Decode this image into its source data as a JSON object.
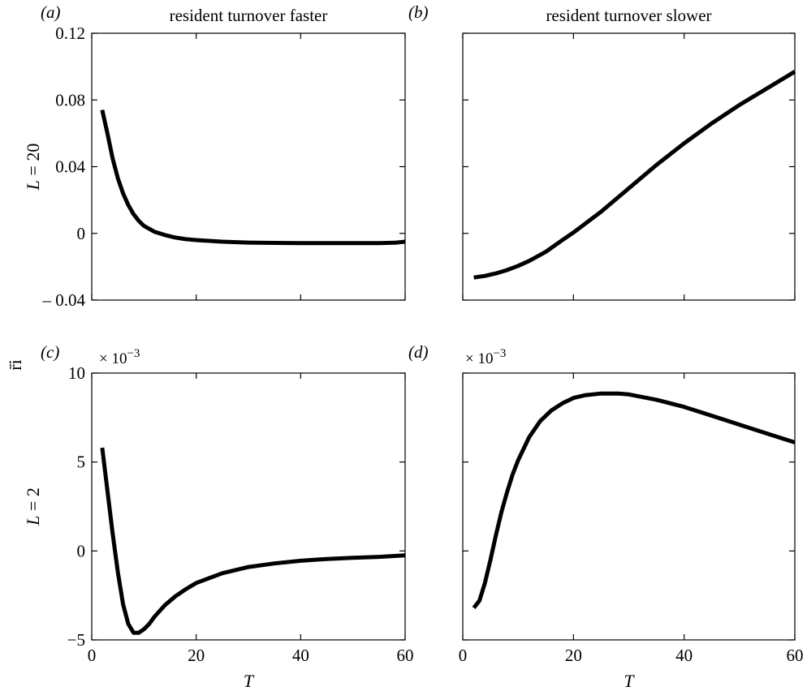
{
  "figure": {
    "shared_ylabel": "r̄i",
    "shared_xlabel": "T"
  },
  "chart_data": [
    {
      "id": "a",
      "type": "line",
      "panel_label": "(a)",
      "title": "resident turnover faster",
      "ylabel": "L = 20",
      "xlabel": "",
      "multiplier": "",
      "xlim": [
        0,
        60
      ],
      "ylim": [
        -0.04,
        0.12
      ],
      "xticks": [
        0,
        20,
        40,
        60
      ],
      "xtick_labels": [
        "",
        "",
        "",
        ""
      ],
      "yticks": [
        -0.04,
        0,
        0.04,
        0.08,
        0.12
      ],
      "ytick_labels": [
        "– 0.04",
        "0",
        "0.04",
        "0.08",
        "0.12"
      ],
      "grid": false,
      "series": [
        {
          "x": [
            2,
            3,
            4,
            5,
            6,
            7,
            8,
            9,
            10,
            12,
            14,
            16,
            18,
            20,
            25,
            30,
            35,
            40,
            45,
            50,
            55,
            58,
            60
          ],
          "y": [
            0.074,
            0.06,
            0.045,
            0.033,
            0.024,
            0.017,
            0.0115,
            0.0075,
            0.0045,
            0.001,
            -0.001,
            -0.0025,
            -0.0035,
            -0.004,
            -0.005,
            -0.0055,
            -0.0057,
            -0.0058,
            -0.0058,
            -0.0058,
            -0.0058,
            -0.0056,
            -0.005
          ]
        }
      ]
    },
    {
      "id": "b",
      "type": "line",
      "panel_label": "(b)",
      "title": "resident turnover slower",
      "ylabel": "",
      "xlabel": "",
      "multiplier": "",
      "xlim": [
        0,
        60
      ],
      "ylim": [
        -0.04,
        0.12
      ],
      "xticks": [
        0,
        20,
        40,
        60
      ],
      "xtick_labels": [
        "",
        "",
        "",
        ""
      ],
      "yticks": [
        -0.04,
        0,
        0.04,
        0.08,
        0.12
      ],
      "ytick_labels": [
        "",
        "",
        "",
        "",
        ""
      ],
      "grid": false,
      "series": [
        {
          "x": [
            2,
            4,
            6,
            8,
            10,
            12,
            15,
            18,
            20,
            25,
            30,
            35,
            40,
            45,
            50,
            55,
            60
          ],
          "y": [
            -0.0265,
            -0.0255,
            -0.024,
            -0.022,
            -0.0195,
            -0.0165,
            -0.011,
            -0.004,
            0.0005,
            0.013,
            0.027,
            0.041,
            0.054,
            0.066,
            0.077,
            0.087,
            0.097
          ]
        }
      ]
    },
    {
      "id": "c",
      "type": "line",
      "panel_label": "(c)",
      "title": "",
      "ylabel": "L = 2",
      "xlabel": "T",
      "multiplier": "× 10",
      "multiplier_exp": "−3",
      "xlim": [
        0,
        60
      ],
      "ylim": [
        -5,
        10
      ],
      "xticks": [
        0,
        20,
        40,
        60
      ],
      "xtick_labels": [
        "0",
        "20",
        "40",
        "60"
      ],
      "yticks": [
        -5,
        0,
        5,
        10
      ],
      "ytick_labels": [
        "−5",
        "0",
        "5",
        "10"
      ],
      "grid": false,
      "series": [
        {
          "x": [
            2,
            3,
            4,
            5,
            6,
            7,
            8,
            9,
            10,
            11,
            12,
            14,
            16,
            18,
            20,
            25,
            30,
            35,
            40,
            45,
            50,
            55,
            60
          ],
          "y": [
            5.8,
            3.4,
            1.0,
            -1.2,
            -3.0,
            -4.1,
            -4.6,
            -4.6,
            -4.4,
            -4.1,
            -3.7,
            -3.05,
            -2.55,
            -2.15,
            -1.8,
            -1.25,
            -0.9,
            -0.7,
            -0.55,
            -0.45,
            -0.38,
            -0.33,
            -0.25
          ]
        }
      ]
    },
    {
      "id": "d",
      "type": "line",
      "panel_label": "(d)",
      "title": "",
      "ylabel": "",
      "xlabel": "T",
      "multiplier": "× 10",
      "multiplier_exp": "−3",
      "xlim": [
        0,
        60
      ],
      "ylim": [
        -5,
        10
      ],
      "xticks": [
        0,
        20,
        40,
        60
      ],
      "xtick_labels": [
        "0",
        "20",
        "40",
        "60"
      ],
      "yticks": [
        -5,
        0,
        5,
        10
      ],
      "ytick_labels": [
        "",
        "",
        "",
        ""
      ],
      "grid": false,
      "series": [
        {
          "x": [
            2,
            3,
            4,
            5,
            6,
            7,
            8,
            9,
            10,
            12,
            14,
            16,
            18,
            20,
            22,
            25,
            28,
            30,
            35,
            40,
            45,
            50,
            55,
            60
          ],
          "y": [
            -3.2,
            -2.8,
            -1.8,
            -0.5,
            0.9,
            2.2,
            3.3,
            4.3,
            5.1,
            6.4,
            7.3,
            7.9,
            8.3,
            8.6,
            8.75,
            8.85,
            8.85,
            8.8,
            8.5,
            8.1,
            7.6,
            7.1,
            6.6,
            6.1
          ]
        }
      ]
    }
  ]
}
